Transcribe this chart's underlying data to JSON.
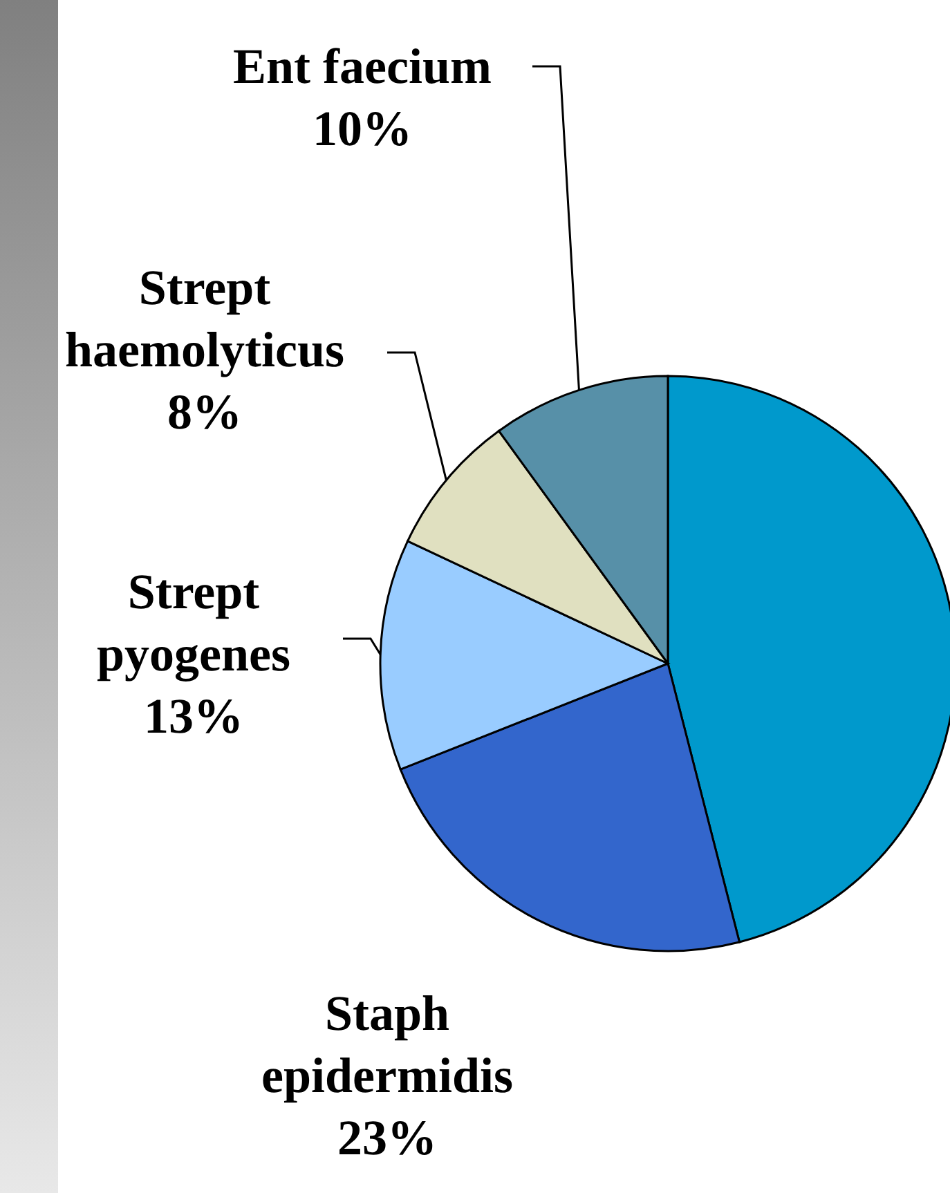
{
  "chart_data": {
    "type": "pie",
    "categories": [
      null,
      "Staph epidermidis",
      "Strept pyogenes",
      "Strept haemolyticus",
      "Ent faecium"
    ],
    "values": [
      46,
      23,
      13,
      8,
      10
    ],
    "value_labels": [
      null,
      "23%",
      "13%",
      "8%",
      "10%"
    ],
    "colors": [
      "#0099cc",
      "#3366cc",
      "#99ccff",
      "#e0e0c0",
      "#5790a8"
    ]
  }
}
